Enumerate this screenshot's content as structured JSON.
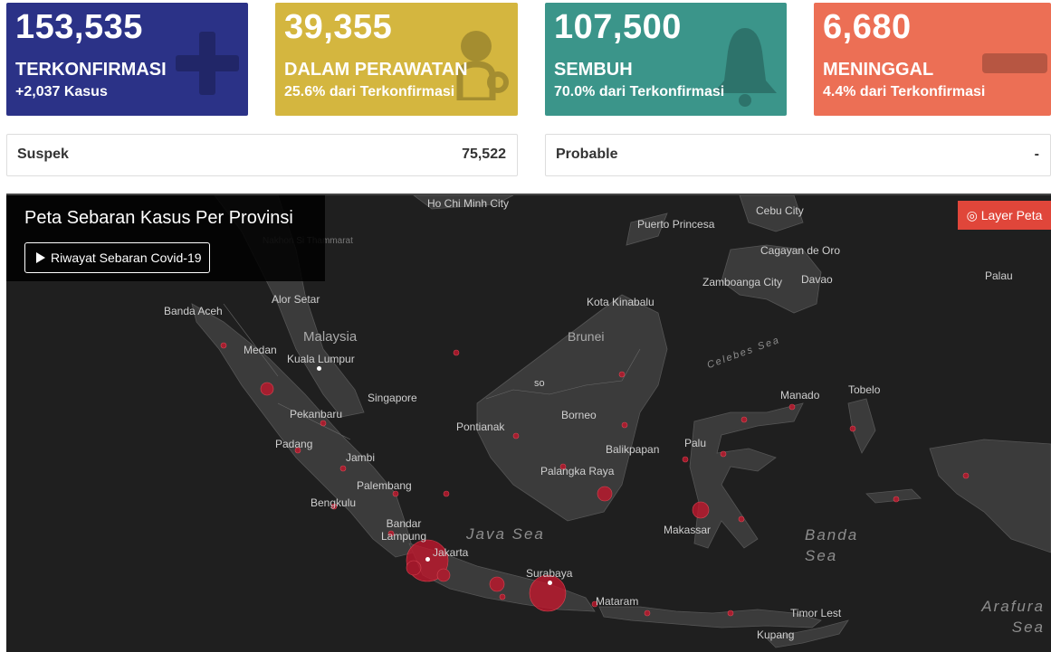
{
  "cards": [
    {
      "number": "153,535",
      "label": "TERKONFIRMASI",
      "sub": "+2,037 Kasus",
      "icon": "plus-icon"
    },
    {
      "number": "39,355",
      "label": "DALAM PERAWATAN",
      "sub": "25.6% dari Terkonfirmasi",
      "icon": "patient-icon"
    },
    {
      "number": "107,500",
      "label": "SEMBUH",
      "sub": "70.0% dari Terkonfirmasi",
      "icon": "bell-icon"
    },
    {
      "number": "6,680",
      "label": "MENINGGAL",
      "sub": "4.4% dari Terkonfirmasi",
      "icon": "minus-icon"
    }
  ],
  "stats": [
    {
      "label": "Suspek",
      "value": "75,522"
    },
    {
      "label": "Probable",
      "value": "-"
    }
  ],
  "map": {
    "title": "Peta Sebaran Kasus Per Provinsi",
    "history_button": "Riwayat Sebaran Covid-19",
    "layer_button": "Layer Peta",
    "places": [
      "Ho Chi Minh City",
      "Cebu City",
      "Puerto Princesa",
      "Cagayan de Oro",
      "Davao",
      "Palau",
      "Zamboanga City",
      "Kota Kinabalu",
      "Nakhon Si Thammarat",
      "Alor Setar",
      "Banda Aceh",
      "Malaysia",
      "Medan",
      "Kuala Lumpur",
      "Brunei",
      "Singapore",
      "Pekanbaru",
      "Pontianak",
      "Borneo",
      "Manado",
      "Tobelo",
      "Padang",
      "Jambi",
      "Balikpapan",
      "Palu",
      "Palangka Raya",
      "Palembang",
      "Bengkulu",
      "Bandar Lampung",
      "Jakarta",
      "Makassar",
      "Surabaya",
      "Mataram",
      "Timor Lest",
      "Kupang",
      "so"
    ],
    "seas": [
      "Java Sea",
      "Banda Sea",
      "Arafura Sea",
      "Celebes Sea"
    ]
  }
}
